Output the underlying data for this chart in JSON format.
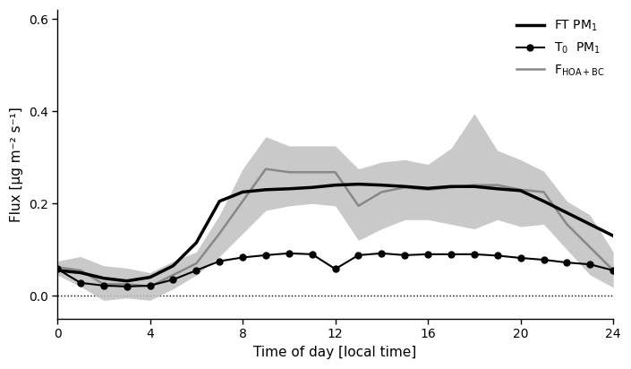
{
  "title": "",
  "xlabel": "Time of day [local time]",
  "ylabel": "Flux [μg m⁻² s⁻¹]",
  "xlim": [
    0,
    24
  ],
  "ylim": [
    -0.05,
    0.62
  ],
  "yticks": [
    0.0,
    0.2,
    0.4,
    0.6
  ],
  "xticks": [
    0,
    4,
    8,
    12,
    16,
    20,
    24
  ],
  "FT_PM1_x": [
    0,
    1,
    2,
    3,
    4,
    5,
    6,
    7,
    8,
    9,
    10,
    11,
    12,
    13,
    14,
    15,
    16,
    17,
    18,
    19,
    20,
    21,
    22,
    23,
    24
  ],
  "FT_PM1_y": [
    0.055,
    0.05,
    0.038,
    0.032,
    0.04,
    0.065,
    0.115,
    0.205,
    0.225,
    0.23,
    0.232,
    0.235,
    0.24,
    0.242,
    0.24,
    0.237,
    0.233,
    0.237,
    0.237,
    0.232,
    0.228,
    0.205,
    0.18,
    0.155,
    0.13
  ],
  "T0_PM1_x": [
    0,
    1,
    2,
    3,
    4,
    5,
    6,
    7,
    8,
    9,
    10,
    11,
    12,
    13,
    14,
    15,
    16,
    17,
    18,
    19,
    20,
    21,
    22,
    23,
    24
  ],
  "T0_PM1_y": [
    0.058,
    0.028,
    0.022,
    0.02,
    0.022,
    0.035,
    0.055,
    0.075,
    0.083,
    0.088,
    0.092,
    0.09,
    0.058,
    0.088,
    0.092,
    0.088,
    0.09,
    0.09,
    0.09,
    0.087,
    0.082,
    0.078,
    0.072,
    0.068,
    0.055
  ],
  "FHOA_BC_x": [
    0,
    1,
    2,
    3,
    4,
    5,
    6,
    7,
    8,
    9,
    10,
    11,
    12,
    13,
    14,
    15,
    16,
    17,
    18,
    19,
    20,
    21,
    22,
    23,
    24
  ],
  "FHOA_BC_y": [
    0.062,
    0.055,
    0.025,
    0.025,
    0.02,
    0.045,
    0.07,
    0.135,
    0.205,
    0.275,
    0.268,
    0.268,
    0.268,
    0.195,
    0.225,
    0.235,
    0.23,
    0.235,
    0.24,
    0.24,
    0.23,
    0.225,
    0.155,
    0.105,
    0.055
  ],
  "FHOA_BC_upper": [
    0.075,
    0.085,
    0.065,
    0.06,
    0.05,
    0.075,
    0.095,
    0.175,
    0.275,
    0.345,
    0.325,
    0.325,
    0.325,
    0.275,
    0.29,
    0.295,
    0.285,
    0.32,
    0.395,
    0.315,
    0.295,
    0.27,
    0.205,
    0.175,
    0.095
  ],
  "FHOA_BC_lower": [
    0.045,
    0.02,
    -0.01,
    -0.005,
    -0.01,
    0.015,
    0.045,
    0.085,
    0.135,
    0.185,
    0.195,
    0.2,
    0.195,
    0.12,
    0.145,
    0.165,
    0.165,
    0.155,
    0.145,
    0.165,
    0.15,
    0.155,
    0.1,
    0.045,
    0.018
  ],
  "FT_color": "#000000",
  "T0_color": "#000000",
  "FHOA_BC_color": "#888888",
  "FHOA_BC_fill_color": "#c0c0c0",
  "legend_FT": "FT PM$_1$",
  "legend_T0": "T$_0$  PM$_1$",
  "legend_FHOA": "F$_{\\mathrm{HOA+BC}}$",
  "fig_width": 7.05,
  "fig_height": 4.12,
  "dpi": 100
}
